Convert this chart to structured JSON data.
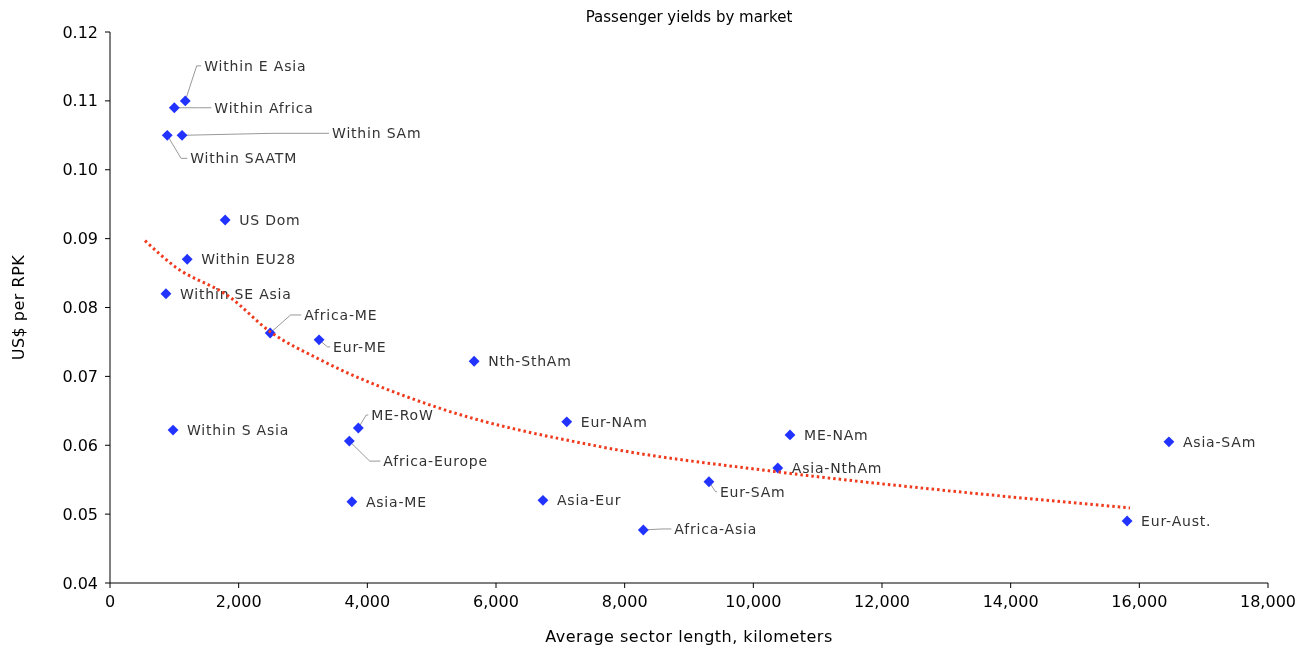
{
  "chart_data": {
    "type": "scatter",
    "title": "Passenger yields by market",
    "xlabel": "Average sector length, kilometers",
    "ylabel": "US$ per RPK",
    "xlim": [
      0,
      18000
    ],
    "xticks": [
      0,
      {
        "value": 2000,
        "label": "2,000"
      },
      {
        "value": 4000,
        "label": "4,000"
      },
      {
        "value": 6000,
        "label": "6,000"
      },
      {
        "value": 8000,
        "label": "8,000"
      },
      {
        "value": 10000,
        "label": "10,000"
      },
      {
        "value": 12000,
        "label": "12,000"
      },
      {
        "value": 14000,
        "label": "14,000"
      },
      {
        "value": 16000,
        "label": "16,000"
      },
      {
        "value": 18000,
        "label": "18,000"
      }
    ],
    "ylim": [
      0.04,
      0.12
    ],
    "yticks": [
      0.04,
      0.05,
      0.06,
      0.07,
      0.08,
      0.09,
      {
        "value": 0.1,
        "label": "0.10"
      },
      0.11,
      0.12
    ],
    "grid": false,
    "marker": "diamond",
    "series": [
      {
        "name": "Within E Asia",
        "color": "#2233ff",
        "x": [
          1170
        ],
        "values": [
          0.11
        ]
      },
      {
        "name": "Within Africa",
        "color": "#2233ff",
        "x": [
          1000
        ],
        "values": [
          0.109
        ]
      },
      {
        "name": "Within SAm",
        "color": "#2233ff",
        "x": [
          1120
        ],
        "values": [
          0.105
        ]
      },
      {
        "name": "Within SAATM",
        "color": "#2233ff",
        "x": [
          890
        ],
        "values": [
          0.105
        ]
      },
      {
        "name": "US Dom",
        "color": "#2233ff",
        "x": [
          1790
        ],
        "values": [
          0.0927
        ]
      },
      {
        "name": "Within EU28",
        "color": "#2233ff",
        "x": [
          1200
        ],
        "values": [
          0.087
        ]
      },
      {
        "name": "Within SE Asia",
        "color": "#2233ff",
        "x": [
          870
        ],
        "values": [
          0.082
        ]
      },
      {
        "name": "Africa-ME",
        "color": "#2233ff",
        "x": [
          2490
        ],
        "values": [
          0.0763
        ]
      },
      {
        "name": "Eur-ME",
        "color": "#2233ff",
        "x": [
          3250
        ],
        "values": [
          0.0753
        ]
      },
      {
        "name": "Nth-SthAm",
        "color": "#2233ff",
        "x": [
          5660
        ],
        "values": [
          0.0722
        ]
      },
      {
        "name": "Within S Asia",
        "color": "#2233ff",
        "x": [
          980
        ],
        "values": [
          0.0622
        ]
      },
      {
        "name": "ME-RoW",
        "color": "#2233ff",
        "x": [
          3860
        ],
        "values": [
          0.0625
        ]
      },
      {
        "name": "Africa-Europe",
        "color": "#2233ff",
        "x": [
          3720
        ],
        "values": [
          0.0606
        ]
      },
      {
        "name": "Asia-ME",
        "color": "#2233ff",
        "x": [
          3760
        ],
        "values": [
          0.0518
        ]
      },
      {
        "name": "Asia-Eur",
        "color": "#2233ff",
        "x": [
          6730
        ],
        "values": [
          0.052
        ]
      },
      {
        "name": "Eur-NAm",
        "color": "#2233ff",
        "x": [
          7100
        ],
        "values": [
          0.0634
        ]
      },
      {
        "name": "Africa-Asia",
        "color": "#2233ff",
        "x": [
          8290
        ],
        "values": [
          0.0477
        ]
      },
      {
        "name": "Eur-SAm",
        "color": "#2233ff",
        "x": [
          9310
        ],
        "values": [
          0.0547
        ]
      },
      {
        "name": "Asia-NthAm",
        "color": "#2233ff",
        "x": [
          10380
        ],
        "values": [
          0.0567
        ]
      },
      {
        "name": "ME-NAm",
        "color": "#2233ff",
        "x": [
          10570
        ],
        "values": [
          0.0615
        ]
      },
      {
        "name": "Asia-SAm",
        "color": "#2233ff",
        "x": [
          16460
        ],
        "values": [
          0.0605
        ]
      },
      {
        "name": "Eur-Aust.",
        "color": "#2233ff",
        "x": [
          15810
        ],
        "values": [
          0.049
        ]
      },
      {
        "type": "line",
        "color": "#f03a1e",
        "line_style": "dotted",
        "marker": "none",
        "x": [
          544,
          1000,
          1865,
          2487,
          3250,
          5020,
          7617,
          10321,
          13026,
          15855
        ],
        "values": [
          0.0897,
          0.086,
          0.0815,
          0.0765,
          0.0725,
          0.0657,
          0.0598,
          0.0562,
          0.0534,
          0.0509
        ]
      }
    ]
  }
}
